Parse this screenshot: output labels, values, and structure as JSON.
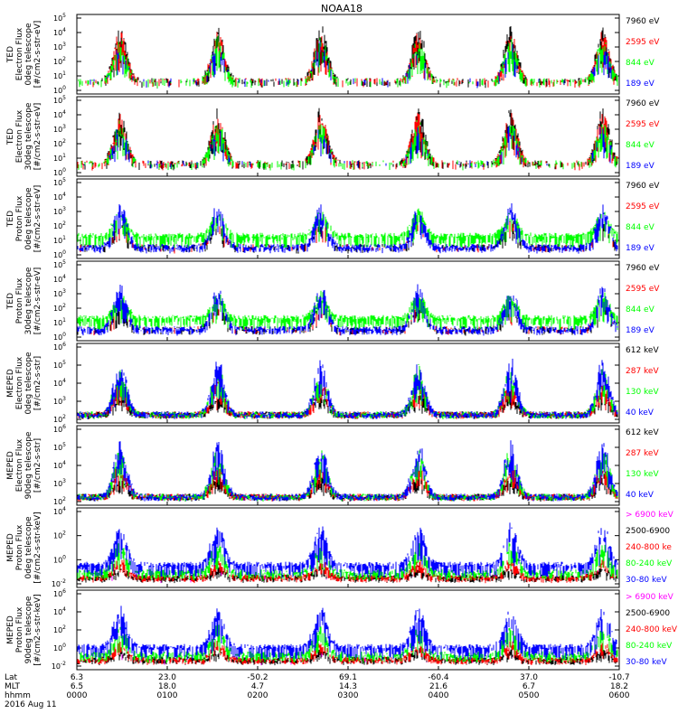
{
  "title": "NOAA18",
  "colors": {
    "black": "#000000",
    "red": "#ff0000",
    "green": "#00ff00",
    "blue": "#0000ff",
    "magenta": "#ff00ff"
  },
  "x_axis": {
    "row_labels": [
      "Lat",
      "MLT",
      "hhmm",
      "2016 Aug 11"
    ],
    "ticks": [
      {
        "lat": "6.3",
        "mlt": "6.5",
        "hhmm": "0000"
      },
      {
        "lat": "23.0",
        "mlt": "18.0",
        "hhmm": "0100"
      },
      {
        "lat": "-50.2",
        "mlt": "4.7",
        "hhmm": "0200"
      },
      {
        "lat": "69.1",
        "mlt": "14.3",
        "hhmm": "0300"
      },
      {
        "lat": "-60.4",
        "mlt": "21.6",
        "hhmm": "0400"
      },
      {
        "lat": "37.0",
        "mlt": "6.7",
        "hhmm": "0500"
      },
      {
        "lat": "-10.7",
        "mlt": "18.2",
        "hhmm": "0600"
      }
    ]
  },
  "chart_data": [
    {
      "type": "line",
      "ylabel": [
        "TED",
        "Electron Flux",
        "0deg telescope",
        "[#/cm2-s-str-eV]"
      ],
      "y_tick_labels": [
        "10^0",
        "10^1",
        "10^2",
        "10^3",
        "10^4",
        "10^5"
      ],
      "legend": [
        {
          "name": "7960 eV",
          "color": "#000000"
        },
        {
          "name": "2595 eV",
          "color": "#ff0000"
        },
        {
          "name": "844 eV",
          "color": "#00ff00"
        },
        {
          "name": "189 eV",
          "color": "#0000ff"
        }
      ]
    },
    {
      "type": "line",
      "ylabel": [
        "TED",
        "Electron Flux",
        "30deg telescope",
        "[#/cm2-s-str-eV]"
      ],
      "y_tick_labels": [
        "10^0",
        "10^1",
        "10^2",
        "10^3",
        "10^4",
        "10^5"
      ],
      "legend": [
        {
          "name": "7960 eV",
          "color": "#000000"
        },
        {
          "name": "2595 eV",
          "color": "#ff0000"
        },
        {
          "name": "844 eV",
          "color": "#00ff00"
        },
        {
          "name": "189 eV",
          "color": "#0000ff"
        }
      ]
    },
    {
      "type": "line",
      "ylabel": [
        "TED",
        "Proton Flux",
        "0deg telescope",
        "[#/cm2-s-str-eV]"
      ],
      "y_tick_labels": [
        "10^0",
        "10^1",
        "10^2",
        "10^3",
        "10^4",
        "10^5"
      ],
      "legend": [
        {
          "name": "7960 eV",
          "color": "#000000"
        },
        {
          "name": "2595 eV",
          "color": "#ff0000"
        },
        {
          "name": "844 eV",
          "color": "#00ff00"
        },
        {
          "name": "189 eV",
          "color": "#0000ff"
        }
      ]
    },
    {
      "type": "line",
      "ylabel": [
        "TED",
        "Proton Flux",
        "30deg telescope",
        "[#/cm2-s-str-eV]"
      ],
      "y_tick_labels": [
        "10^0",
        "10^1",
        "10^2",
        "10^3",
        "10^4",
        "10^5"
      ],
      "legend": [
        {
          "name": "7960 eV",
          "color": "#000000"
        },
        {
          "name": "2595 eV",
          "color": "#ff0000"
        },
        {
          "name": "844 eV",
          "color": "#00ff00"
        },
        {
          "name": "189 eV",
          "color": "#0000ff"
        }
      ]
    },
    {
      "type": "line",
      "ylabel": [
        "MEPED",
        "Electron Flux",
        "0deg telescope",
        "[#/cm2-s-str]"
      ],
      "y_tick_labels": [
        "10^2",
        "10^3",
        "10^4",
        "10^5",
        "10^6"
      ],
      "legend": [
        {
          "name": "612 keV",
          "color": "#000000"
        },
        {
          "name": "287 keV",
          "color": "#ff0000"
        },
        {
          "name": "130 keV",
          "color": "#00ff00"
        },
        {
          "name": "40 keV",
          "color": "#0000ff"
        }
      ]
    },
    {
      "type": "line",
      "ylabel": [
        "MEPED",
        "Electron Flux",
        "90deg telescope",
        "[#/cm2-s-str]"
      ],
      "y_tick_labels": [
        "10^2",
        "10^3",
        "10^4",
        "10^5",
        "10^6"
      ],
      "legend": [
        {
          "name": "612 keV",
          "color": "#000000"
        },
        {
          "name": "287 keV",
          "color": "#ff0000"
        },
        {
          "name": "130 keV",
          "color": "#00ff00"
        },
        {
          "name": "40 keV",
          "color": "#0000ff"
        }
      ]
    },
    {
      "type": "line",
      "ylabel": [
        "MEPED",
        "Proton Flux",
        "0deg telescope",
        "[#/cm2-s-str-keV]"
      ],
      "y_tick_labels": [
        "10^-2",
        "10^0",
        "10^2",
        "10^4"
      ],
      "legend": [
        {
          "name": "> 6900 keV",
          "color": "#ff00ff"
        },
        {
          "name": "2500-6900",
          "color": "#000000"
        },
        {
          "name": "240-800 ke",
          "color": "#ff0000"
        },
        {
          "name": "80-240 keV",
          "color": "#00ff00"
        },
        {
          "name": "30-80 keV",
          "color": "#0000ff"
        }
      ]
    },
    {
      "type": "line",
      "ylabel": [
        "MEPED",
        "Proton Flux",
        "90deg telescope",
        "[#/cm2-s-str-keV]"
      ],
      "y_tick_labels": [
        "10^-2",
        "10^0",
        "10^2",
        "10^4",
        "10^6"
      ],
      "legend": [
        {
          "name": "> 6900 keV",
          "color": "#ff00ff"
        },
        {
          "name": "2500-6900",
          "color": "#000000"
        },
        {
          "name": "240-800 keV",
          "color": "#ff0000"
        },
        {
          "name": "80-240 keV",
          "color": "#00ff00"
        },
        {
          "name": "30-80 keV",
          "color": "#0000ff"
        }
      ]
    }
  ]
}
